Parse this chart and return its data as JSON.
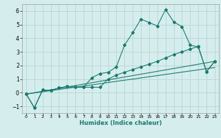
{
  "xlabel": "Humidex (Indice chaleur)",
  "ylabel": "",
  "bg_color": "#d5eded",
  "line_color": "#1a7a6e",
  "grid_color": "#b8d4d4",
  "xlim": [
    -0.5,
    23.5
  ],
  "ylim": [
    -1.5,
    6.5
  ],
  "yticks": [
    -1,
    0,
    1,
    2,
    3,
    4,
    5,
    6
  ],
  "xticks": [
    0,
    1,
    2,
    3,
    4,
    5,
    6,
    7,
    8,
    9,
    10,
    11,
    12,
    13,
    14,
    15,
    16,
    17,
    18,
    19,
    20,
    21,
    22,
    23
  ],
  "series1_x": [
    0,
    1,
    2,
    3,
    4,
    5,
    6,
    7,
    8,
    9,
    10,
    11,
    12,
    13,
    14,
    15,
    16,
    17,
    18,
    19,
    20,
    21,
    22,
    23
  ],
  "series1_y": [
    -0.1,
    -1.1,
    0.2,
    0.15,
    0.35,
    0.45,
    0.4,
    0.4,
    1.1,
    1.4,
    1.5,
    1.9,
    3.5,
    4.4,
    5.4,
    5.15,
    4.9,
    6.1,
    5.2,
    4.85,
    3.5,
    3.35,
    1.55,
    2.3
  ],
  "series2_x": [
    0,
    1,
    2,
    3,
    4,
    5,
    6,
    7,
    8,
    9,
    10,
    11,
    12,
    13,
    14,
    15,
    16,
    17,
    18,
    19,
    20,
    21,
    22,
    23
  ],
  "series2_y": [
    -0.1,
    -1.1,
    0.2,
    0.15,
    0.35,
    0.45,
    0.4,
    0.4,
    0.4,
    0.4,
    1.0,
    1.3,
    1.5,
    1.7,
    1.9,
    2.1,
    2.3,
    2.55,
    2.8,
    3.0,
    3.2,
    3.4,
    1.55,
    2.3
  ],
  "series3_x": [
    0,
    23
  ],
  "series3_y": [
    -0.1,
    2.3
  ],
  "series4_x": [
    0,
    23
  ],
  "series4_y": [
    -0.1,
    1.85
  ]
}
